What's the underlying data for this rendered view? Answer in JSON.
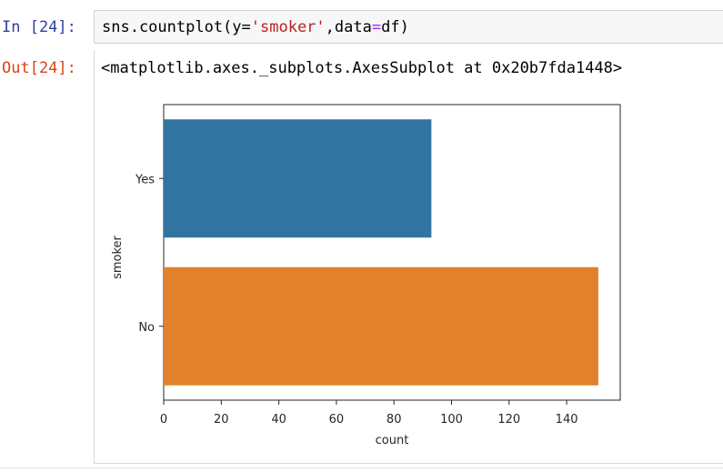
{
  "cell": {
    "in_prompt": "In [24]:",
    "out_prompt": "Out[24]:",
    "code": {
      "func": "sns.countplot(y=",
      "arg_str": "'smoker'",
      "rest": ",data",
      "eq": "=",
      "end": "df)"
    },
    "output_repr": "<matplotlib.axes._subplots.AxesSubplot at 0x20b7fda1448>"
  },
  "chart_data": {
    "type": "bar",
    "orientation": "horizontal",
    "categories": [
      "Yes",
      "No"
    ],
    "values": [
      93,
      151
    ],
    "colors": [
      "#3274a1",
      "#e1812c"
    ],
    "title": "",
    "xlabel": "count",
    "ylabel": "smoker",
    "xlim": [
      0,
      160
    ],
    "xticks": [
      0,
      20,
      40,
      60,
      80,
      100,
      120,
      140
    ],
    "grid": false
  }
}
